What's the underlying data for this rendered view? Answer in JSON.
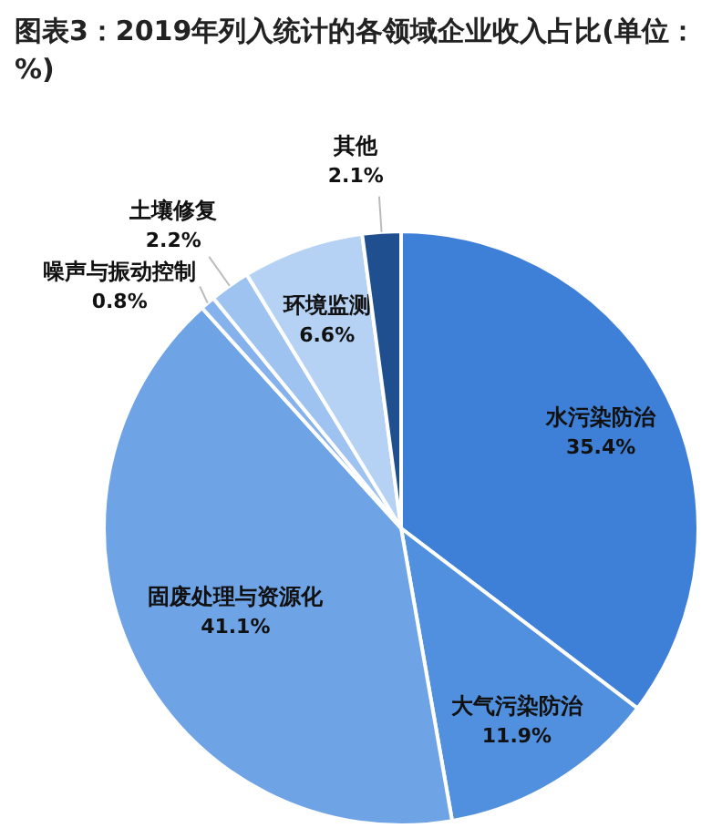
{
  "chart_data": {
    "type": "pie",
    "title": "图表3：2019年列入统计的各领域企业收入占比(单位：%)",
    "categories": [
      "水污染防治",
      "大气污染防治",
      "固废处理与资源化",
      "噪声与振动控制",
      "土壤修复",
      "环境监测",
      "其他"
    ],
    "values": [
      35.4,
      11.9,
      41.1,
      0.8,
      2.2,
      6.6,
      2.1
    ],
    "colors": [
      "#3e80d8",
      "#5190de",
      "#6ea3e6",
      "#85b2ec",
      "#9ec3f0",
      "#b5d2f4",
      "#1f4f8f"
    ],
    "value_labels": [
      "35.4%",
      "11.9%",
      "41.1%",
      "0.8%",
      "2.2%",
      "6.6%",
      "2.1%"
    ]
  }
}
